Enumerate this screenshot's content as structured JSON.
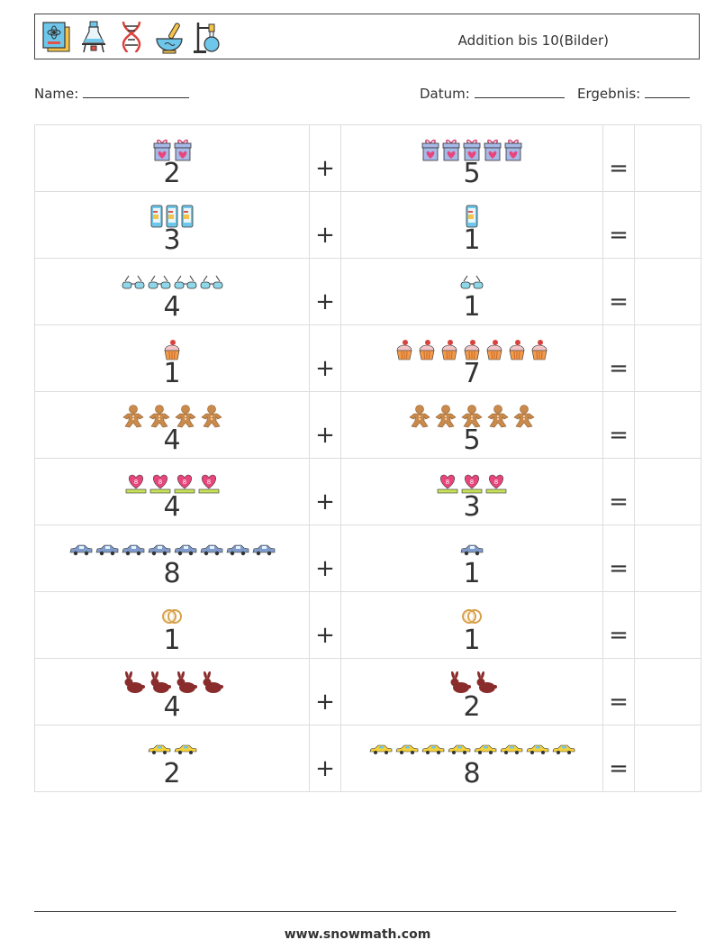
{
  "header": {
    "icons": [
      "science-book-icon",
      "lab-flask-icon",
      "dna-icon",
      "mortar-pestle-icon",
      "retort-stand-icon"
    ],
    "title": "Addition bis 10(Bilder)"
  },
  "meta": {
    "name_label": "Name:",
    "date_label": "Datum:",
    "result_label": "Ergebnis:"
  },
  "operators": {
    "plus": "+",
    "equals": "="
  },
  "problems": [
    {
      "left": 2,
      "right": 5,
      "picture": "gift-box-icon"
    },
    {
      "left": 3,
      "right": 1,
      "picture": "mobile-phone-icon"
    },
    {
      "left": 4,
      "right": 1,
      "picture": "sunglasses-icon"
    },
    {
      "left": 1,
      "right": 7,
      "picture": "cupcake-icon"
    },
    {
      "left": 4,
      "right": 5,
      "picture": "gingerbread-man-icon"
    },
    {
      "left": 4,
      "right": 3,
      "picture": "heart-8-icon"
    },
    {
      "left": 8,
      "right": 1,
      "picture": "car-icon"
    },
    {
      "left": 1,
      "right": 1,
      "picture": "rings-icon"
    },
    {
      "left": 4,
      "right": 2,
      "picture": "bunny-icon"
    },
    {
      "left": 2,
      "right": 8,
      "picture": "taxi-icon"
    }
  ],
  "footer": {
    "url": "www.snowmath.com"
  }
}
